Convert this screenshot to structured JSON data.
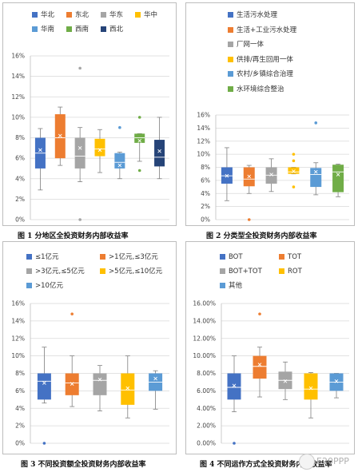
{
  "chart_data": [
    {
      "type": "box",
      "title": "图 1 分地区全投资财务内部收益率",
      "ylim": [
        0,
        16
      ],
      "yticks": [
        "0%",
        "2%",
        "4%",
        "6%",
        "8%",
        "10%",
        "12%",
        "14%",
        "16%"
      ],
      "legend_position": "top",
      "series": [
        {
          "name": "华北",
          "color": "#4472C4",
          "whisker_low": 2.9,
          "q1": 5.0,
          "median": 6.5,
          "mean": 6.8,
          "q3": 8.0,
          "whisker_high": 8.9,
          "outliers": []
        },
        {
          "name": "东北",
          "color": "#ED7D31",
          "whisker_low": 5.3,
          "q1": 6.0,
          "median": 8.0,
          "mean": 8.2,
          "q3": 10.3,
          "whisker_high": 11.0,
          "outliers": []
        },
        {
          "name": "华东",
          "color": "#A5A5A5",
          "whisker_low": 3.7,
          "q1": 5.0,
          "median": 6.2,
          "mean": 7.0,
          "q3": 8.0,
          "whisker_high": 9.0,
          "outliers": [
            0,
            14.8
          ]
        },
        {
          "name": "华中",
          "color": "#FFC000",
          "whisker_low": 4.6,
          "q1": 6.2,
          "median": 6.9,
          "mean": 6.8,
          "q3": 7.9,
          "whisker_high": 8.8,
          "outliers": []
        },
        {
          "name": "华南",
          "color": "#5B9BD5",
          "whisker_low": 4.0,
          "q1": 5.0,
          "median": 5.6,
          "mean": 5.3,
          "q3": 6.5,
          "whisker_high": 6.6,
          "outliers": [
            9.0
          ]
        },
        {
          "name": "西南",
          "color": "#70AD47",
          "whisker_low": 5.7,
          "q1": 7.5,
          "median": 8.0,
          "mean": 7.7,
          "q3": 8.4,
          "whisker_high": 8.4,
          "outliers": [
            4.8,
            10.0
          ]
        },
        {
          "name": "西北",
          "color": "#264478",
          "whisker_low": 4.0,
          "q1": 5.2,
          "median": 6.1,
          "mean": 6.7,
          "q3": 7.8,
          "whisker_high": 10.0,
          "outliers": []
        }
      ]
    },
    {
      "type": "box",
      "title": "图 2 分类型全投资财务内部收益率",
      "ylim": [
        0,
        16
      ],
      "yticks": [
        "0%",
        "2%",
        "4%",
        "6%",
        "8%",
        "10%",
        "12%",
        "14%",
        "16%"
      ],
      "legend_position": "top",
      "series": [
        {
          "name": "生活污水处理",
          "color": "#4472C4",
          "whisker_low": 2.9,
          "q1": 5.5,
          "median": 6.7,
          "mean": 6.7,
          "q3": 8.0,
          "whisker_high": 11.0,
          "outliers": []
        },
        {
          "name": "生活+工业污水处理",
          "color": "#ED7D31",
          "whisker_low": 4.0,
          "q1": 5.1,
          "median": 6.2,
          "mean": 6.6,
          "q3": 8.0,
          "whisker_high": 8.3,
          "outliers": [
            0
          ]
        },
        {
          "name": "厂网一体",
          "color": "#A5A5A5",
          "whisker_low": 4.3,
          "q1": 5.5,
          "median": 6.8,
          "mean": 6.9,
          "q3": 8.0,
          "whisker_high": 9.3,
          "outliers": []
        },
        {
          "name": "供排/再生回用一体",
          "color": "#FFC000",
          "whisker_low": 7.0,
          "q1": 7.0,
          "median": 7.3,
          "mean": 7.4,
          "q3": 8.0,
          "whisker_high": 8.0,
          "outliers": [
            5.0,
            9.0,
            10.0
          ]
        },
        {
          "name": "农村/乡镇综合治理",
          "color": "#5B9BD5",
          "whisker_low": 3.8,
          "q1": 5.0,
          "median": 6.9,
          "mean": 7.3,
          "q3": 7.9,
          "whisker_high": 8.7,
          "outliers": [
            14.8
          ]
        },
        {
          "name": "水环境综合整治",
          "color": "#70AD47",
          "whisker_low": 3.5,
          "q1": 4.2,
          "median": 7.3,
          "mean": 6.9,
          "q3": 8.4,
          "whisker_high": 8.5,
          "outliers": []
        }
      ]
    },
    {
      "type": "box",
      "title": "图 3 不同投资额全投资财务内部收益率",
      "ylim": [
        0,
        16
      ],
      "yticks": [
        "0%",
        "2%",
        "4%",
        "6%",
        "8%",
        "10%",
        "12%",
        "14%",
        "16%"
      ],
      "legend_position": "top",
      "series": [
        {
          "name": "≤1亿元",
          "color": "#4472C4",
          "whisker_low": 4.6,
          "q1": 5.0,
          "median": 7.1,
          "mean": 6.9,
          "q3": 8.0,
          "whisker_high": 11.0,
          "outliers": [
            0
          ]
        },
        {
          "name": ">1亿元,≤3亿元",
          "color": "#ED7D31",
          "whisker_low": 4.2,
          "q1": 5.5,
          "median": 6.9,
          "mean": 6.8,
          "q3": 8.0,
          "whisker_high": 10.0,
          "outliers": [
            14.8
          ]
        },
        {
          "name": ">3亿元,≤5亿元",
          "color": "#A5A5A5",
          "whisker_low": 3.7,
          "q1": 5.5,
          "median": 7.2,
          "mean": 7.3,
          "q3": 8.0,
          "whisker_high": 8.9,
          "outliers": []
        },
        {
          "name": ">5亿元,≤10亿元",
          "color": "#FFC000",
          "whisker_low": 2.9,
          "q1": 4.4,
          "median": 6.1,
          "mean": 6.3,
          "q3": 8.0,
          "whisker_high": 10.0,
          "outliers": []
        },
        {
          "name": ">10亿元",
          "color": "#5B9BD5",
          "whisker_low": 3.9,
          "q1": 6.0,
          "median": 7.0,
          "mean": 7.4,
          "q3": 8.0,
          "whisker_high": 8.3,
          "outliers": []
        }
      ]
    },
    {
      "type": "box",
      "title": "图 4 不同运作方式全投资财务内部收益率",
      "ylim": [
        0,
        16
      ],
      "yticks": [
        "0.00%",
        "2.00%",
        "4.00%",
        "6.00%",
        "8.00%",
        "10.00%",
        "12.00%",
        "14.00%",
        "16.00%"
      ],
      "legend_position": "top",
      "series": [
        {
          "name": "BOT",
          "color": "#4472C4",
          "whisker_low": 3.6,
          "q1": 5.0,
          "median": 6.4,
          "mean": 6.6,
          "q3": 8.0,
          "whisker_high": 10.0,
          "outliers": [
            0
          ]
        },
        {
          "name": "TOT",
          "color": "#ED7D31",
          "whisker_low": 5.3,
          "q1": 7.4,
          "median": 8.8,
          "mean": 9.0,
          "q3": 10.0,
          "whisker_high": 11.0,
          "outliers": [
            14.8
          ]
        },
        {
          "name": "BOT+TOT",
          "color": "#A5A5A5",
          "whisker_low": 5.0,
          "q1": 6.2,
          "median": 7.2,
          "mean": 7.1,
          "q3": 8.2,
          "whisker_high": 9.3,
          "outliers": []
        },
        {
          "name": "ROT",
          "color": "#FFC000",
          "whisker_low": 2.9,
          "q1": 5.0,
          "median": 6.2,
          "mean": 6.3,
          "q3": 8.0,
          "whisker_high": 8.1,
          "outliers": []
        },
        {
          "name": "其他",
          "color": "#5B9BD5",
          "whisker_low": 5.2,
          "q1": 6.0,
          "median": 7.0,
          "mean": 7.1,
          "q3": 8.0,
          "whisker_high": 8.0,
          "outliers": []
        }
      ]
    }
  ],
  "watermark": {
    "text": "E20PPP"
  },
  "colors": {
    "axis": "#bfbfbf",
    "grid": "#d9d9d9",
    "mean_marker": "#ffffff"
  }
}
